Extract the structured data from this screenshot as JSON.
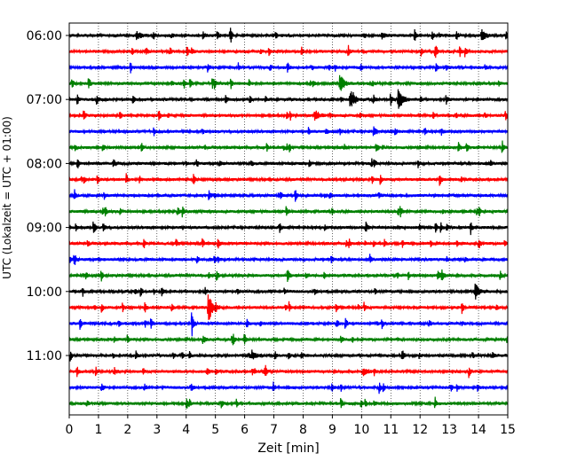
{
  "chart_data": {
    "type": "line",
    "title": "",
    "xlabel": "Zeit  [min]",
    "ylabel": "UTC (Lokalzeit = UTC + 01:00)",
    "xlim": [
      0,
      15
    ],
    "x_ticks": [
      0,
      1,
      2,
      3,
      4,
      5,
      6,
      7,
      8,
      9,
      10,
      11,
      12,
      13,
      14,
      15
    ],
    "y_tick_labels": [
      "06:00",
      "07:00",
      "08:00",
      "09:00",
      "10:00",
      "11:00"
    ],
    "trace_count": 24,
    "trace_interval_min": 15,
    "first_trace": "06:00",
    "grid": "vertical dotted",
    "color_cycle": [
      "#000000",
      "#ff0000",
      "#0000ff",
      "#008000"
    ],
    "events": [
      {
        "trace": 0,
        "minute": 2.3,
        "amp": 0.35
      },
      {
        "trace": 0,
        "minute": 10.7,
        "amp": 0.25
      },
      {
        "trace": 0,
        "minute": 14.1,
        "amp": 0.55
      },
      {
        "trace": 3,
        "minute": 9.25,
        "amp": 0.95
      },
      {
        "trace": 4,
        "minute": 9.6,
        "amp": 0.95
      },
      {
        "trace": 4,
        "minute": 11.25,
        "amp": 1.1
      },
      {
        "trace": 5,
        "minute": 8.4,
        "amp": 0.5
      },
      {
        "trace": 8,
        "minute": 1.5,
        "amp": 0.25
      },
      {
        "trace": 15,
        "minute": 12.6,
        "amp": 0.3
      },
      {
        "trace": 16,
        "minute": 13.9,
        "amp": 0.55
      },
      {
        "trace": 17,
        "minute": 4.75,
        "amp": 1.45
      },
      {
        "trace": 20,
        "minute": 6.25,
        "amp": 0.35
      },
      {
        "trace": 21,
        "minute": 10.05,
        "amp": 0.3
      }
    ]
  }
}
